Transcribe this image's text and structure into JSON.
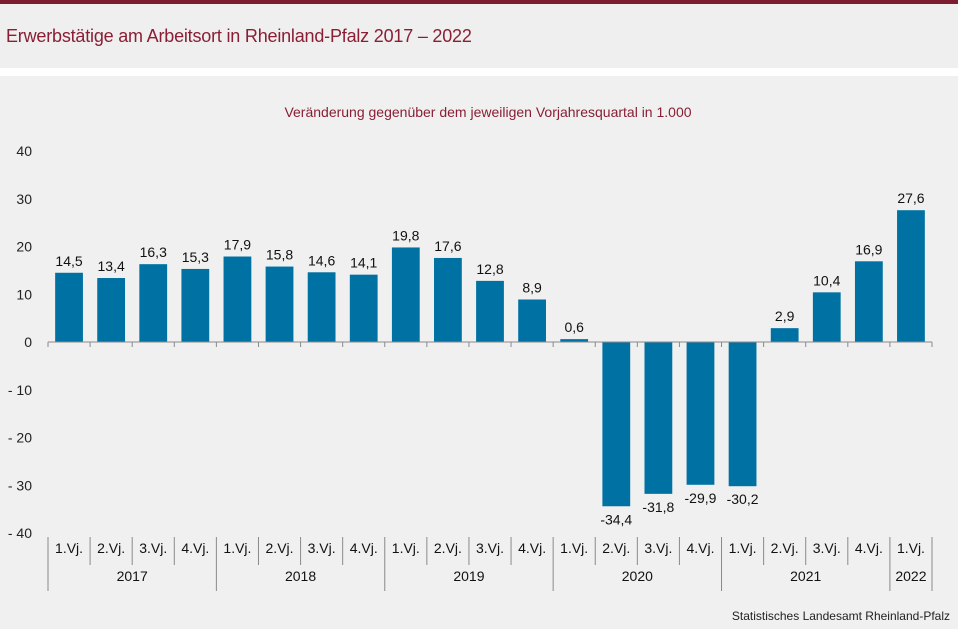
{
  "header": {
    "title": "Erwerbstätige am Arbeitsort in Rheinland-Pfalz 2017 – 2022"
  },
  "footer": {
    "source": "Statistisches Landesamt  Rheinland-Pfalz"
  },
  "colors": {
    "bar": "#0071a3",
    "accent": "#8a1e35"
  },
  "chart_data": {
    "type": "bar",
    "subtitle": "Veränderung  gegenüber  dem  jeweiligen  Vorjahresquartal  in  1.000",
    "categories": [
      "1.Vj.",
      "2.Vj.",
      "3.Vj.",
      "4.Vj.",
      "1.Vj.",
      "2.Vj.",
      "3.Vj.",
      "4.Vj.",
      "1.Vj.",
      "2.Vj.",
      "3.Vj.",
      "4.Vj.",
      "1.Vj.",
      "2.Vj.",
      "3.Vj.",
      "4.Vj.",
      "1.Vj.",
      "2.Vj.",
      "3.Vj.",
      "4.Vj.",
      "1.Vj."
    ],
    "years": [
      {
        "label": "2017",
        "count": 4
      },
      {
        "label": "2018",
        "count": 4
      },
      {
        "label": "2019",
        "count": 4
      },
      {
        "label": "2020",
        "count": 4
      },
      {
        "label": "2021",
        "count": 4
      },
      {
        "label": "2022",
        "count": 1
      }
    ],
    "values": [
      14.5,
      13.4,
      16.3,
      15.3,
      17.9,
      15.8,
      14.6,
      14.1,
      19.8,
      17.6,
      12.8,
      8.9,
      0.6,
      -34.4,
      -31.8,
      -29.9,
      -30.2,
      2.9,
      10.4,
      16.9,
      27.6
    ],
    "value_labels": [
      "14,5",
      "13,4",
      "16,3",
      "15,3",
      "17,9",
      "15,8",
      "14,6",
      "14,1",
      "19,8",
      "17,6",
      "12,8",
      "8,9",
      "0,6",
      "-34,4",
      "-31,8",
      "-29,9",
      "-30,2",
      "2,9",
      "10,4",
      "16,9",
      "27,6"
    ],
    "ylim": [
      -40,
      40
    ],
    "yticks": [
      {
        "value": 40,
        "label": "40"
      },
      {
        "value": 30,
        "label": "30"
      },
      {
        "value": 20,
        "label": "20"
      },
      {
        "value": 10,
        "label": "10"
      },
      {
        "value": 0,
        "label": "0"
      },
      {
        "value": -10,
        "label": "- 10"
      },
      {
        "value": -20,
        "label": "- 20"
      },
      {
        "value": -30,
        "label": "- 30"
      },
      {
        "value": -40,
        "label": "- 40"
      }
    ],
    "grid": false
  }
}
